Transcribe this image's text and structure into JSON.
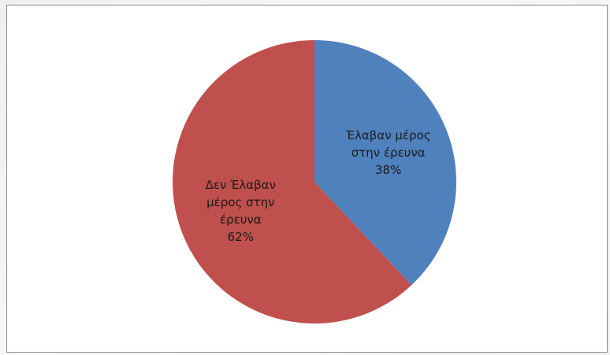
{
  "chart_data": {
    "type": "pie",
    "start_angle_deg": 0,
    "direction": "clockwise",
    "slices": [
      {
        "label_lines": [
          "Έλαβαν μέρος",
          "στην έρευνα"
        ],
        "value": 38,
        "value_label": "38%",
        "color": "#4f81bd"
      },
      {
        "label_lines": [
          "Δεν Έλαβαν",
          "μέρος στην",
          "έρευνα"
        ],
        "value": 62,
        "value_label": "62%",
        "color": "#c0504d"
      }
    ],
    "legend": "none"
  }
}
